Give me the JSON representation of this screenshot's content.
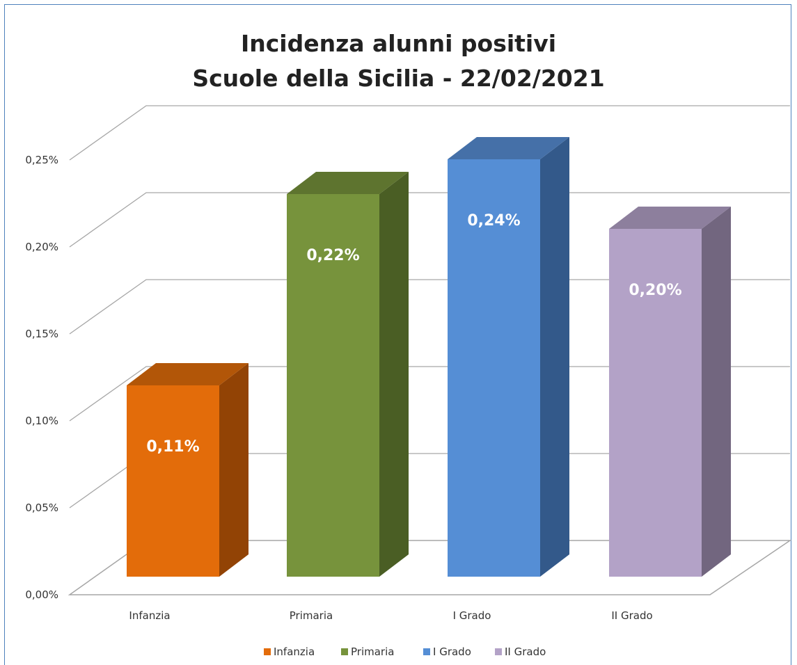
{
  "chart_data": {
    "type": "bar",
    "title_line1": "Incidenza alunni positivi",
    "title_line2": "Scuole della Sicilia - 22/02/2021",
    "categories": [
      "Infanzia",
      "Primaria",
      "I Grado",
      "II Grado"
    ],
    "values": [
      0.11,
      0.22,
      0.24,
      0.2
    ],
    "data_labels": [
      "0,11%",
      "0,22%",
      "0,24%",
      "0,20%"
    ],
    "y_tick_values": [
      0,
      0.05,
      0.1,
      0.15,
      0.2,
      0.25
    ],
    "y_tick_labels": [
      "0,00%",
      "0,05%",
      "0,10%",
      "0,15%",
      "0,20%",
      "0,25%"
    ],
    "ylim": [
      0,
      0.25
    ],
    "unit": "%",
    "style": "3d-column",
    "grid": true,
    "legend_position": "bottom",
    "legend": [
      "Infanzia",
      "Primaria",
      "I Grado",
      "II Grado"
    ],
    "colors": {
      "front": [
        "#e36c0a",
        "#77933c",
        "#558ed5",
        "#b3a2c7"
      ],
      "side": [
        "#924305",
        "#4a5e24",
        "#33598a",
        "#72667f"
      ],
      "top": [
        "#b25608",
        "#5e742f",
        "#4570a8",
        "#8d7f9d"
      ]
    },
    "grid_color": "#a6a6a6"
  }
}
